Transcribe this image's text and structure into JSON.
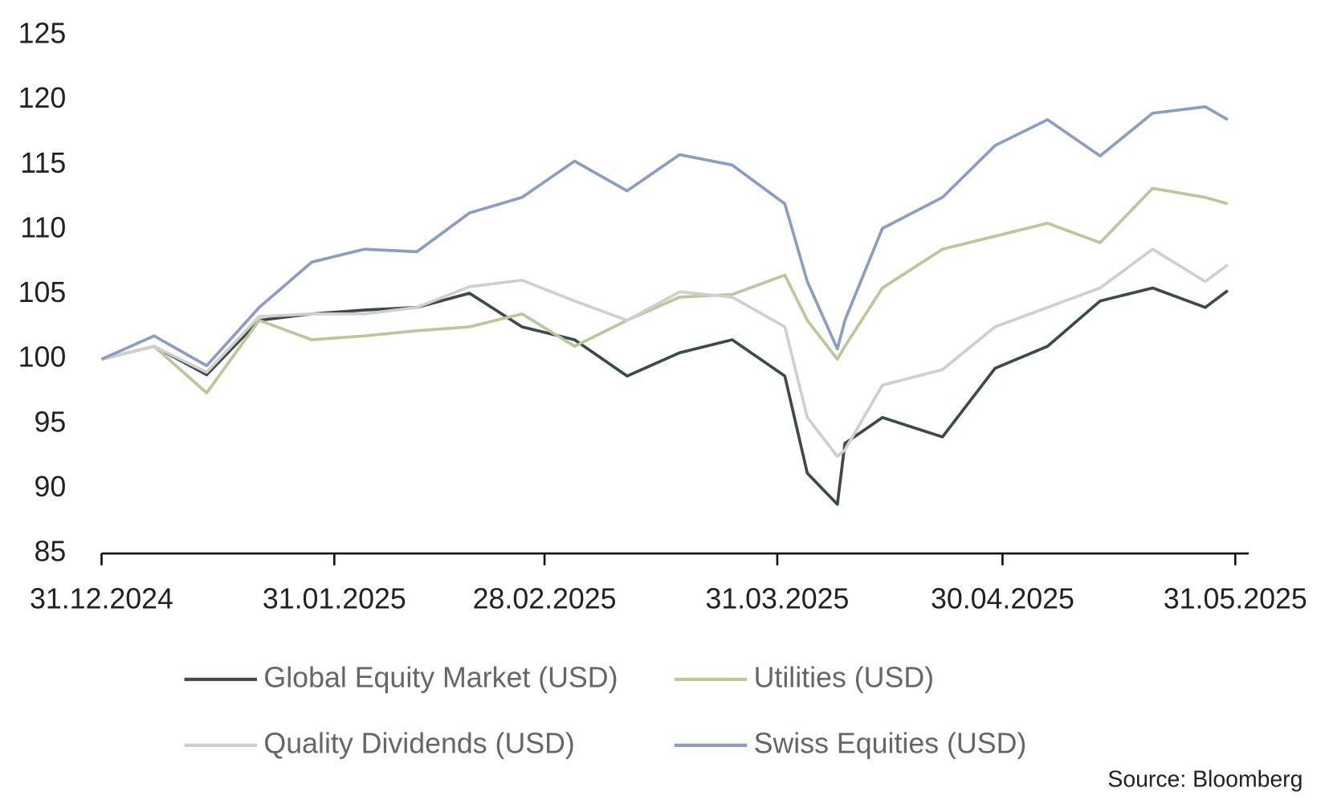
{
  "chart_data": {
    "type": "line",
    "x": [
      "31.12.2024",
      "07.01.2025",
      "14.01.2025",
      "21.01.2025",
      "28.01.2025",
      "04.02.2025",
      "11.02.2025",
      "18.02.2025",
      "25.02.2025",
      "04.03.2025",
      "11.03.2025",
      "18.03.2025",
      "25.03.2025",
      "01.04.2025",
      "04.04.2025",
      "08.04.2025",
      "09.04.2025",
      "14.04.2025",
      "22.04.2025",
      "29.04.2025",
      "06.05.2025",
      "13.05.2025",
      "20.05.2025",
      "27.05.2025",
      "30.05.2025"
    ],
    "series": [
      {
        "name": "Global Equity Market (USD)",
        "color": "#3d4a4a",
        "values": [
          100,
          101,
          98.8,
          103,
          103.5,
          103.8,
          104,
          105.1,
          102.5,
          101.5,
          98.7,
          100.5,
          101.5,
          98.7,
          91.2,
          88.8,
          93.5,
          95.5,
          94,
          99.3,
          101,
          104.5,
          105.5,
          104,
          105.3
        ]
      },
      {
        "name": "Utilities (USD)",
        "color": "#b9c79a",
        "values": [
          100,
          101,
          97.4,
          103,
          101.5,
          101.8,
          102.2,
          102.5,
          103.5,
          101,
          103,
          104.8,
          105,
          106.5,
          103,
          100,
          101,
          105.5,
          108.5,
          109.5,
          110.5,
          109,
          113.2,
          112.5,
          112
        ]
      },
      {
        "name": "Quality Dividends (USD)",
        "color": "#cfcfcf",
        "values": [
          100,
          101,
          99,
          103.3,
          103.5,
          103.5,
          104,
          105.6,
          106.1,
          104.5,
          103,
          105.2,
          104.8,
          102.5,
          95.5,
          92.5,
          93,
          98,
          99.2,
          102.5,
          104,
          105.5,
          108.5,
          106,
          107.3
        ]
      },
      {
        "name": "Swiss Equities (USD)",
        "color": "#8b9dc3",
        "values": [
          100,
          101.8,
          99.5,
          104,
          107.5,
          108.5,
          108.3,
          111.3,
          112.5,
          115.3,
          113,
          115.8,
          115,
          112,
          106,
          100.8,
          103,
          110.1,
          112.5,
          116.5,
          118.5,
          115.7,
          119,
          119.5,
          118.5
        ]
      }
    ],
    "xlim": [
      "31.12.2024",
      "31.05.2025"
    ],
    "xticks": [
      "31.12.2024",
      "31.01.2025",
      "28.02.2025",
      "31.03.2025",
      "30.04.2025",
      "31.05.2025"
    ],
    "ylim": [
      85,
      125
    ],
    "yticks": [
      85,
      90,
      95,
      100,
      105,
      110,
      115,
      120,
      125
    ],
    "grid": false,
    "source": "Source: Bloomberg"
  }
}
